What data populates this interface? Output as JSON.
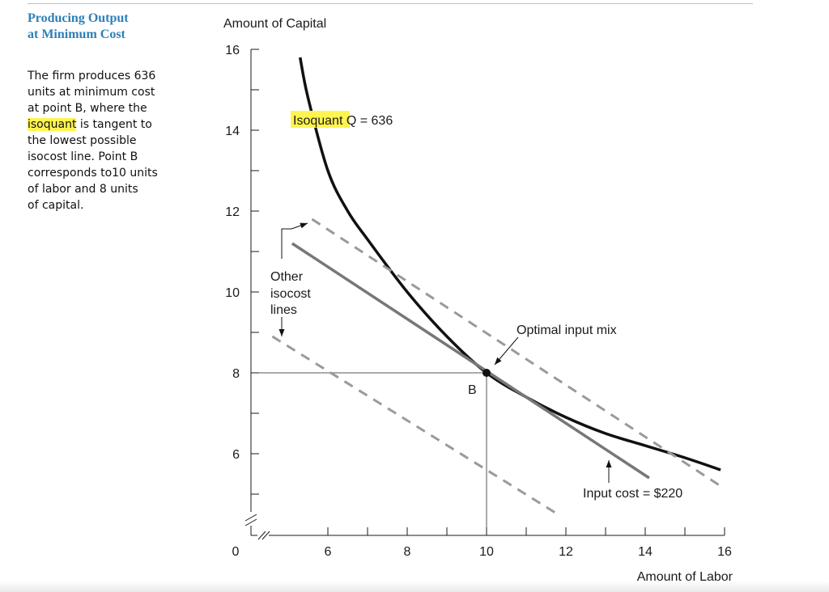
{
  "sidebar": {
    "title_lines": [
      "Producing Output",
      "at Minimum Cost"
    ],
    "body_lines": [
      "The firm produces 636",
      "units at minimum cost",
      "at point B, where the",
      "is tangent to",
      "the lowest possible",
      "isocost line. Point B",
      "corresponds to10 units",
      "of labor and 8 units",
      "of capital."
    ],
    "highlight_word": "isoquant"
  },
  "chart_data": {
    "type": "line",
    "ylabel": "Amount of Capital",
    "xlabel": "Amount of Labor",
    "xlim": [
      5,
      16
    ],
    "ylim": [
      4,
      16
    ],
    "x_origin_label": "0",
    "y_origin_label": "0",
    "x_ticks": [
      "6",
      "8",
      "10",
      "12",
      "14",
      "16"
    ],
    "y_ticks": [
      "6",
      "8",
      "10",
      "12",
      "14",
      "16"
    ],
    "x_tick_values": [
      6,
      8,
      10,
      12,
      14,
      16
    ],
    "y_tick_values": [
      6,
      8,
      10,
      12,
      14,
      16
    ],
    "axis_breaks": true,
    "series": [
      {
        "name": "Isoquant Q = 636",
        "kind": "isoquant",
        "style": "solid-thick",
        "color": "#111111",
        "points": [
          [
            5.3,
            15.8
          ],
          [
            5.5,
            14.8
          ],
          [
            6.0,
            13.0
          ],
          [
            6.5,
            12.0
          ],
          [
            7.0,
            11.3
          ],
          [
            8.0,
            10.0
          ],
          [
            9.0,
            8.9
          ],
          [
            10.0,
            8.0
          ],
          [
            11.0,
            7.4
          ],
          [
            12.0,
            6.9
          ],
          [
            13.0,
            6.5
          ],
          [
            14.0,
            6.2
          ],
          [
            15.0,
            5.9
          ],
          [
            15.9,
            5.6
          ]
        ]
      },
      {
        "name": "Input cost = $220",
        "kind": "isocost",
        "style": "solid",
        "color": "#777777",
        "points": [
          [
            5.1,
            11.2
          ],
          [
            14.1,
            5.4
          ]
        ]
      },
      {
        "name": "Other isocost lines",
        "kind": "isocost",
        "style": "dashed",
        "color": "#9a9a9a",
        "points": [
          [
            5.6,
            11.8
          ],
          [
            15.9,
            5.2
          ]
        ]
      },
      {
        "name": "Other isocost lines",
        "kind": "isocost",
        "style": "dashed",
        "color": "#9a9a9a",
        "points": [
          [
            4.6,
            8.9
          ],
          [
            11.8,
            4.5
          ]
        ]
      }
    ],
    "optimal_point": {
      "label": "B",
      "x": 10,
      "y": 8
    },
    "annotations": {
      "isoquant_prefix": "Isoquant",
      "isoquant_suffix": "Q = 636",
      "other_isocost": [
        "Other",
        "isocost",
        "lines"
      ],
      "optimal_mix": "Optimal input mix",
      "input_cost": "Input cost = $220"
    },
    "colors": {
      "highlight": "#fff44f",
      "title": "#2c7fb8",
      "axis": "#1a1a1a",
      "guide": "#555555"
    }
  }
}
